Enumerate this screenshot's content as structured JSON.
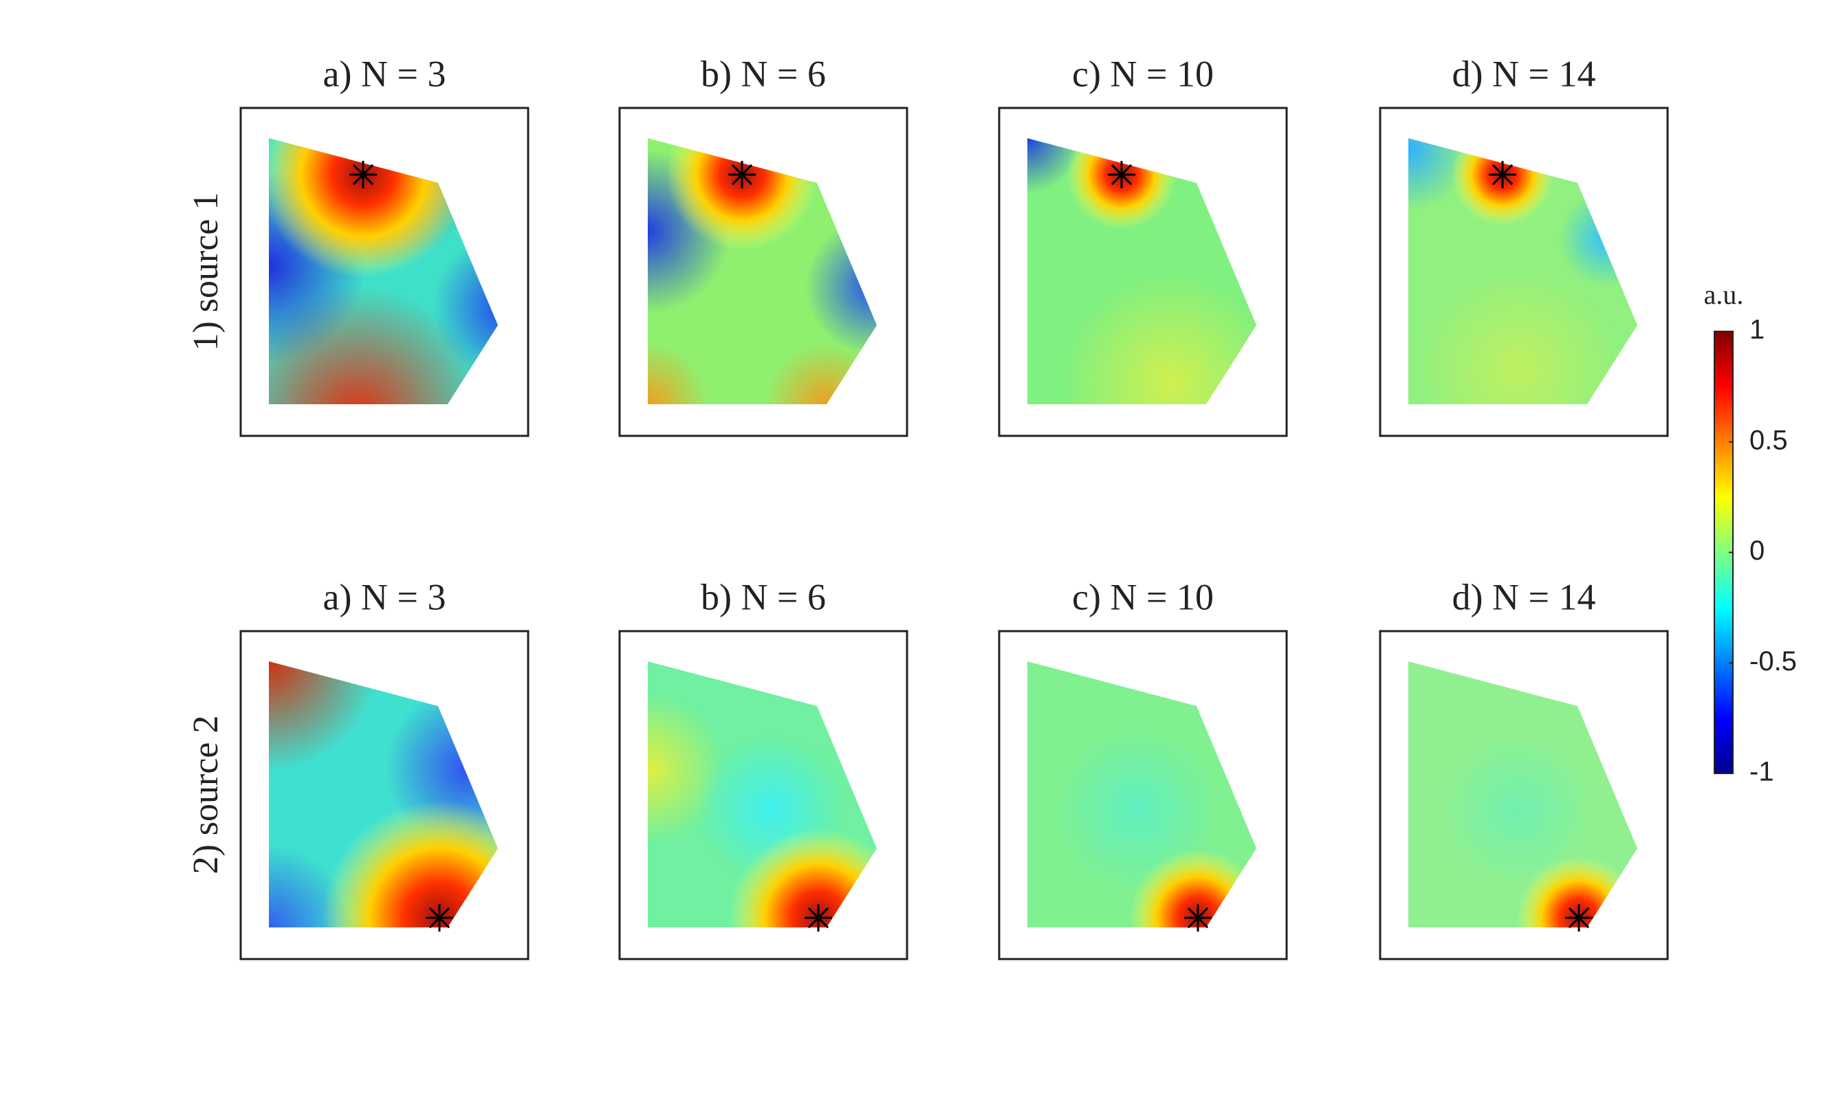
{
  "chart_data": {
    "type": "heatmap",
    "rows": [
      "1) source 1",
      "2) source 2"
    ],
    "columns": [
      "a) N = 3",
      "b) N = 6",
      "c) N = 10",
      "d) N = 14"
    ],
    "colorbar": {
      "label": "a.u.",
      "clim": [
        -1,
        1
      ],
      "cticks": [
        -1,
        -0.5,
        0,
        0.5,
        1
      ]
    }
  }
}
